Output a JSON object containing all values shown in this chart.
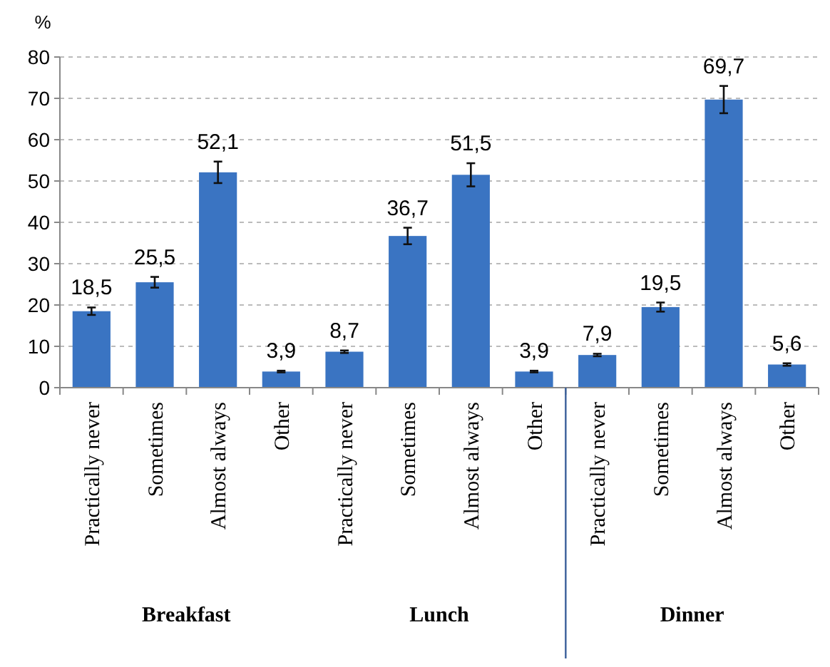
{
  "chart_data": {
    "type": "bar",
    "ylabel": "%",
    "categories": [
      "Practically never",
      "Sometimes",
      "Almost always",
      "Other",
      "Practically never",
      "Sometimes",
      "Almost always",
      "Other",
      "Practically never",
      "Sometimes",
      "Almost always",
      "Other"
    ],
    "values": [
      18.5,
      25.5,
      52.1,
      3.9,
      8.7,
      36.7,
      51.5,
      3.9,
      7.9,
      19.5,
      69.7,
      5.6
    ],
    "errors": [
      0.9,
      1.3,
      2.6,
      0.2,
      0.3,
      2,
      2.8,
      0.2,
      0.3,
      1.1,
      3.3,
      0.3
    ],
    "value_labels": [
      "18,5",
      "25,5",
      "52,1",
      "3,9",
      "8,7",
      "36,7",
      "51,5",
      "3,9",
      "7,9",
      "19,5",
      "69,7",
      "5,6"
    ],
    "color": "#3a74c2",
    "ylim": [
      0,
      80
    ],
    "yticks": [
      0,
      10,
      20,
      30,
      40,
      50,
      60,
      70,
      80
    ],
    "grid": "y",
    "annotations": [
      "Breakfast",
      "Lunch",
      "Dinner"
    ]
  }
}
